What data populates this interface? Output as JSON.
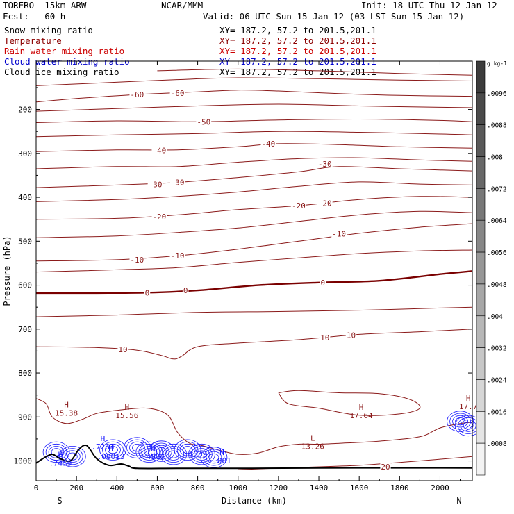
{
  "header": {
    "model": "TORERO  15km ARW",
    "center": "NCAR/MMM",
    "init": "Init: 18 UTC Thu 12 Jan 12",
    "fcst": "Fcst:   60 h",
    "valid": "Valid: 06 UTC Sun 15 Jan 12 (03 LST Sun 15 Jan 12)"
  },
  "legend": [
    {
      "label": "Snow mixing ratio",
      "xy": "XY= 187.2, 57.2 to 201.5,201.1",
      "color": "#000000"
    },
    {
      "label": "Temperature",
      "xy": "XY= 187.2, 57.2 to 201.5,201.1",
      "color": "#8b0000"
    },
    {
      "label": "Rain water mixing ratio",
      "xy": "XY= 187.2, 57.2 to 201.5,201.1",
      "color": "#cc0000"
    },
    {
      "label": "Cloud water mixing ratio",
      "xy": "XY= 187.2, 57.2 to 201.5,201.1",
      "color": "#0000cc"
    },
    {
      "label": "Cloud ice mixing ratio",
      "xy": "XY= 187.2, 57.2 to 201.5,201.1",
      "color": "#000000"
    }
  ],
  "chart_data": {
    "type": "line",
    "xlabel": "Distance (km)",
    "ylabel": "Pressure (hPa)",
    "xlim": [
      0,
      2160
    ],
    "ylim": [
      1045,
      90
    ],
    "x_ticks": [
      0,
      200,
      400,
      600,
      800,
      1000,
      1200,
      1400,
      1600,
      1800,
      2000
    ],
    "y_ticks": [
      200,
      300,
      400,
      500,
      600,
      700,
      800,
      900,
      1000
    ],
    "x_end_labels": {
      "left": "S",
      "right": "N"
    },
    "colorbar": {
      "unit": "g kg-1",
      "ticks": [
        ".0096",
        ".0088",
        ".008",
        ".0072",
        ".0064",
        ".0056",
        ".0048",
        ".004",
        ".0032",
        ".0024",
        ".0016",
        ".0008"
      ],
      "colors": [
        "#3c3c3c",
        "#4a4a4a",
        "#595959",
        "#686868",
        "#787878",
        "#878787",
        "#979797",
        "#a7a7a7",
        "#b7b7b7",
        "#c7c7c7",
        "#d6d6d6",
        "#e5e5e5",
        "#f3f3f3"
      ]
    },
    "temperature_contour_labels": [
      {
        "x": 500,
        "p": 166,
        "text": "-60"
      },
      {
        "x": 700,
        "p": 163,
        "text": "-60"
      },
      {
        "x": 830,
        "p": 228,
        "text": "-50"
      },
      {
        "x": 610,
        "p": 293,
        "text": "-40"
      },
      {
        "x": 1150,
        "p": 278,
        "text": "-40"
      },
      {
        "x": 590,
        "p": 371,
        "text": "-30"
      },
      {
        "x": 700,
        "p": 366,
        "text": "-30"
      },
      {
        "x": 1430,
        "p": 324,
        "text": "-30"
      },
      {
        "x": 610,
        "p": 444,
        "text": "-20"
      },
      {
        "x": 1300,
        "p": 419,
        "text": "-20"
      },
      {
        "x": 1430,
        "p": 413,
        "text": "-20"
      },
      {
        "x": 500,
        "p": 542,
        "text": "-10"
      },
      {
        "x": 700,
        "p": 533,
        "text": "-10"
      },
      {
        "x": 1500,
        "p": 483,
        "text": "-10"
      },
      {
        "x": 550,
        "p": 617,
        "text": "0"
      },
      {
        "x": 740,
        "p": 612,
        "text": "0"
      },
      {
        "x": 1420,
        "p": 594,
        "text": "0"
      },
      {
        "x": 430,
        "p": 746,
        "text": "10"
      },
      {
        "x": 1430,
        "p": 719,
        "text": "10"
      },
      {
        "x": 1560,
        "p": 714,
        "text": "10"
      },
      {
        "x": 1730,
        "p": 1013,
        "text": "20"
      }
    ],
    "extrema": [
      {
        "x": 150,
        "p": 881,
        "type": "H",
        "value": "15.38"
      },
      {
        "x": 450,
        "p": 887,
        "type": "H",
        "value": "15.56"
      },
      {
        "x": 1610,
        "p": 887,
        "type": "H",
        "value": "17.64"
      },
      {
        "x": 2140,
        "p": 866,
        "type": "H",
        "value": "17.7"
      },
      {
        "x": 1370,
        "p": 957,
        "type": "L",
        "value": "13.26"
      },
      {
        "x": 120,
        "p": 995,
        "type": "H",
        "value": ".7459"
      },
      {
        "x": 330,
        "p": 958,
        "type": "H",
        "value": ".7263"
      },
      {
        "x": 370,
        "p": 980,
        "type": "H",
        "value": ".00013"
      },
      {
        "x": 580,
        "p": 980,
        "type": "H",
        "value": ".4907"
      },
      {
        "x": 790,
        "p": 975,
        "type": "H",
        "value": ".8389"
      },
      {
        "x": 920,
        "p": 990,
        "type": "H",
        "value": ".001"
      }
    ],
    "temperature_isolines": [
      {
        "level": "-60",
        "points": [
          [
            0,
            183
          ],
          [
            200,
            175
          ],
          [
            500,
            166
          ],
          [
            800,
            160
          ],
          [
            1000,
            156
          ],
          [
            1200,
            158
          ],
          [
            1500,
            164
          ],
          [
            1800,
            168
          ],
          [
            2160,
            170
          ]
        ]
      },
      {
        "level": "-60b",
        "points": [
          [
            0,
            146
          ],
          [
            300,
            140
          ],
          [
            700,
            132
          ],
          [
            1000,
            128
          ],
          [
            1400,
            130
          ],
          [
            1800,
            133
          ],
          [
            2160,
            135
          ]
        ]
      },
      {
        "level": "-60c",
        "points": [
          [
            600,
            112
          ],
          [
            1000,
            108
          ],
          [
            1400,
            112
          ],
          [
            1800,
            118
          ],
          [
            2160,
            122
          ]
        ]
      },
      {
        "level": "-55",
        "points": [
          [
            0,
            204
          ],
          [
            400,
            198
          ],
          [
            800,
            192
          ],
          [
            1200,
            188
          ],
          [
            1600,
            192
          ],
          [
            2000,
            195
          ],
          [
            2160,
            196
          ]
        ]
      },
      {
        "level": "-50",
        "points": [
          [
            0,
            230
          ],
          [
            400,
            226
          ],
          [
            800,
            228
          ],
          [
            1200,
            224
          ],
          [
            1600,
            222
          ],
          [
            2000,
            225
          ],
          [
            2160,
            228
          ]
        ]
      },
      {
        "level": "-45",
        "points": [
          [
            0,
            262
          ],
          [
            400,
            258
          ],
          [
            800,
            255
          ],
          [
            1200,
            250
          ],
          [
            1600,
            252
          ],
          [
            2000,
            256
          ],
          [
            2160,
            258
          ]
        ]
      },
      {
        "level": "-40",
        "points": [
          [
            0,
            296
          ],
          [
            400,
            292
          ],
          [
            700,
            292
          ],
          [
            1000,
            285
          ],
          [
            1200,
            278
          ],
          [
            1500,
            280
          ],
          [
            1800,
            285
          ],
          [
            2160,
            288
          ]
        ]
      },
      {
        "level": "-35",
        "points": [
          [
            0,
            335
          ],
          [
            400,
            330
          ],
          [
            700,
            330
          ],
          [
            1000,
            320
          ],
          [
            1300,
            312
          ],
          [
            1600,
            310
          ],
          [
            1900,
            315
          ],
          [
            2160,
            318
          ]
        ]
      },
      {
        "level": "-30",
        "points": [
          [
            0,
            378
          ],
          [
            400,
            372
          ],
          [
            700,
            366
          ],
          [
            1000,
            355
          ],
          [
            1300,
            342
          ],
          [
            1500,
            330
          ],
          [
            1800,
            335
          ],
          [
            2160,
            340
          ]
        ]
      },
      {
        "level": "-25",
        "points": [
          [
            0,
            410
          ],
          [
            400,
            405
          ],
          [
            700,
            398
          ],
          [
            1000,
            388
          ],
          [
            1300,
            375
          ],
          [
            1600,
            365
          ],
          [
            1900,
            370
          ],
          [
            2160,
            372
          ]
        ]
      },
      {
        "level": "-20",
        "points": [
          [
            0,
            450
          ],
          [
            400,
            448
          ],
          [
            700,
            440
          ],
          [
            1000,
            428
          ],
          [
            1300,
            419
          ],
          [
            1600,
            405
          ],
          [
            1900,
            398
          ],
          [
            2160,
            400
          ]
        ]
      },
      {
        "level": "-15",
        "points": [
          [
            0,
            492
          ],
          [
            400,
            488
          ],
          [
            700,
            480
          ],
          [
            1000,
            470
          ],
          [
            1300,
            455
          ],
          [
            1600,
            440
          ],
          [
            1900,
            432
          ],
          [
            2160,
            435
          ]
        ]
      },
      {
        "level": "-10",
        "points": [
          [
            0,
            545
          ],
          [
            400,
            542
          ],
          [
            700,
            533
          ],
          [
            1000,
            518
          ],
          [
            1300,
            500
          ],
          [
            1600,
            482
          ],
          [
            1900,
            468
          ],
          [
            2160,
            460
          ]
        ]
      },
      {
        "level": "-5",
        "points": [
          [
            0,
            570
          ],
          [
            400,
            565
          ],
          [
            700,
            560
          ],
          [
            1000,
            548
          ],
          [
            1300,
            538
          ],
          [
            1600,
            528
          ],
          [
            1900,
            522
          ],
          [
            2160,
            520
          ]
        ]
      },
      {
        "level": "0",
        "points": [
          [
            0,
            618
          ],
          [
            300,
            618
          ],
          [
            550,
            617
          ],
          [
            800,
            612
          ],
          [
            1100,
            600
          ],
          [
            1400,
            594
          ],
          [
            1700,
            590
          ],
          [
            2000,
            575
          ],
          [
            2160,
            568
          ]
        ]
      },
      {
        "level": "5",
        "points": [
          [
            0,
            672
          ],
          [
            400,
            668
          ],
          [
            800,
            662
          ],
          [
            1200,
            660
          ],
          [
            1600,
            657
          ],
          [
            2000,
            652
          ],
          [
            2160,
            650
          ]
        ]
      },
      {
        "level": "10",
        "points": [
          [
            0,
            740
          ],
          [
            300,
            742
          ],
          [
            500,
            748
          ],
          [
            620,
            760
          ],
          [
            680,
            768
          ],
          [
            720,
            762
          ],
          [
            800,
            740
          ],
          [
            1000,
            732
          ],
          [
            1300,
            724
          ],
          [
            1600,
            712
          ],
          [
            1900,
            706
          ],
          [
            2160,
            700
          ]
        ]
      },
      {
        "level": "15",
        "points": [
          [
            0,
            858
          ],
          [
            50,
            870
          ],
          [
            80,
            900
          ],
          [
            150,
            915
          ],
          [
            230,
            905
          ],
          [
            300,
            892
          ],
          [
            400,
            885
          ],
          [
            550,
            880
          ],
          [
            650,
            895
          ],
          [
            700,
            935
          ],
          [
            760,
            960
          ],
          [
            820,
            965
          ],
          [
            900,
            975
          ],
          [
            1000,
            985
          ],
          [
            1100,
            982
          ],
          [
            1200,
            968
          ],
          [
            1300,
            962
          ],
          [
            1400,
            962
          ],
          [
            1500,
            960
          ],
          [
            1700,
            955
          ],
          [
            1900,
            945
          ],
          [
            2000,
            925
          ],
          [
            2100,
            915
          ],
          [
            2160,
            912
          ]
        ]
      },
      {
        "level": "16",
        "points": [
          [
            1200,
            845
          ],
          [
            1250,
            870
          ],
          [
            1400,
            880
          ],
          [
            1600,
            896
          ],
          [
            1800,
            893
          ],
          [
            1900,
            880
          ],
          [
            1850,
            860
          ],
          [
            1700,
            847
          ],
          [
            1500,
            845
          ],
          [
            1300,
            840
          ],
          [
            1200,
            845
          ]
        ]
      },
      {
        "level": "20",
        "points": [
          [
            1000,
            1020
          ],
          [
            1300,
            1015
          ],
          [
            1600,
            1010
          ],
          [
            1900,
            1000
          ],
          [
            2160,
            990
          ]
        ]
      }
    ],
    "terrain": [
      [
        0,
        1005
      ],
      [
        40,
        993
      ],
      [
        80,
        985
      ],
      [
        120,
        995
      ],
      [
        170,
        1000
      ],
      [
        210,
        975
      ],
      [
        250,
        965
      ],
      [
        300,
        995
      ],
      [
        360,
        1010
      ],
      [
        420,
        1007
      ],
      [
        460,
        1012
      ],
      [
        500,
        1017
      ],
      [
        700,
        1017
      ],
      [
        1000,
        1017
      ],
      [
        1400,
        1016
      ],
      [
        2160,
        1016
      ]
    ],
    "cloud_water_centers": [
      [
        100,
        980
      ],
      [
        180,
        990
      ],
      [
        380,
        975
      ],
      [
        500,
        970
      ],
      [
        560,
        980
      ],
      [
        620,
        978
      ],
      [
        680,
        985
      ],
      [
        750,
        975
      ],
      [
        820,
        985
      ],
      [
        880,
        992
      ],
      [
        2100,
        910
      ],
      [
        2140,
        920
      ]
    ]
  }
}
